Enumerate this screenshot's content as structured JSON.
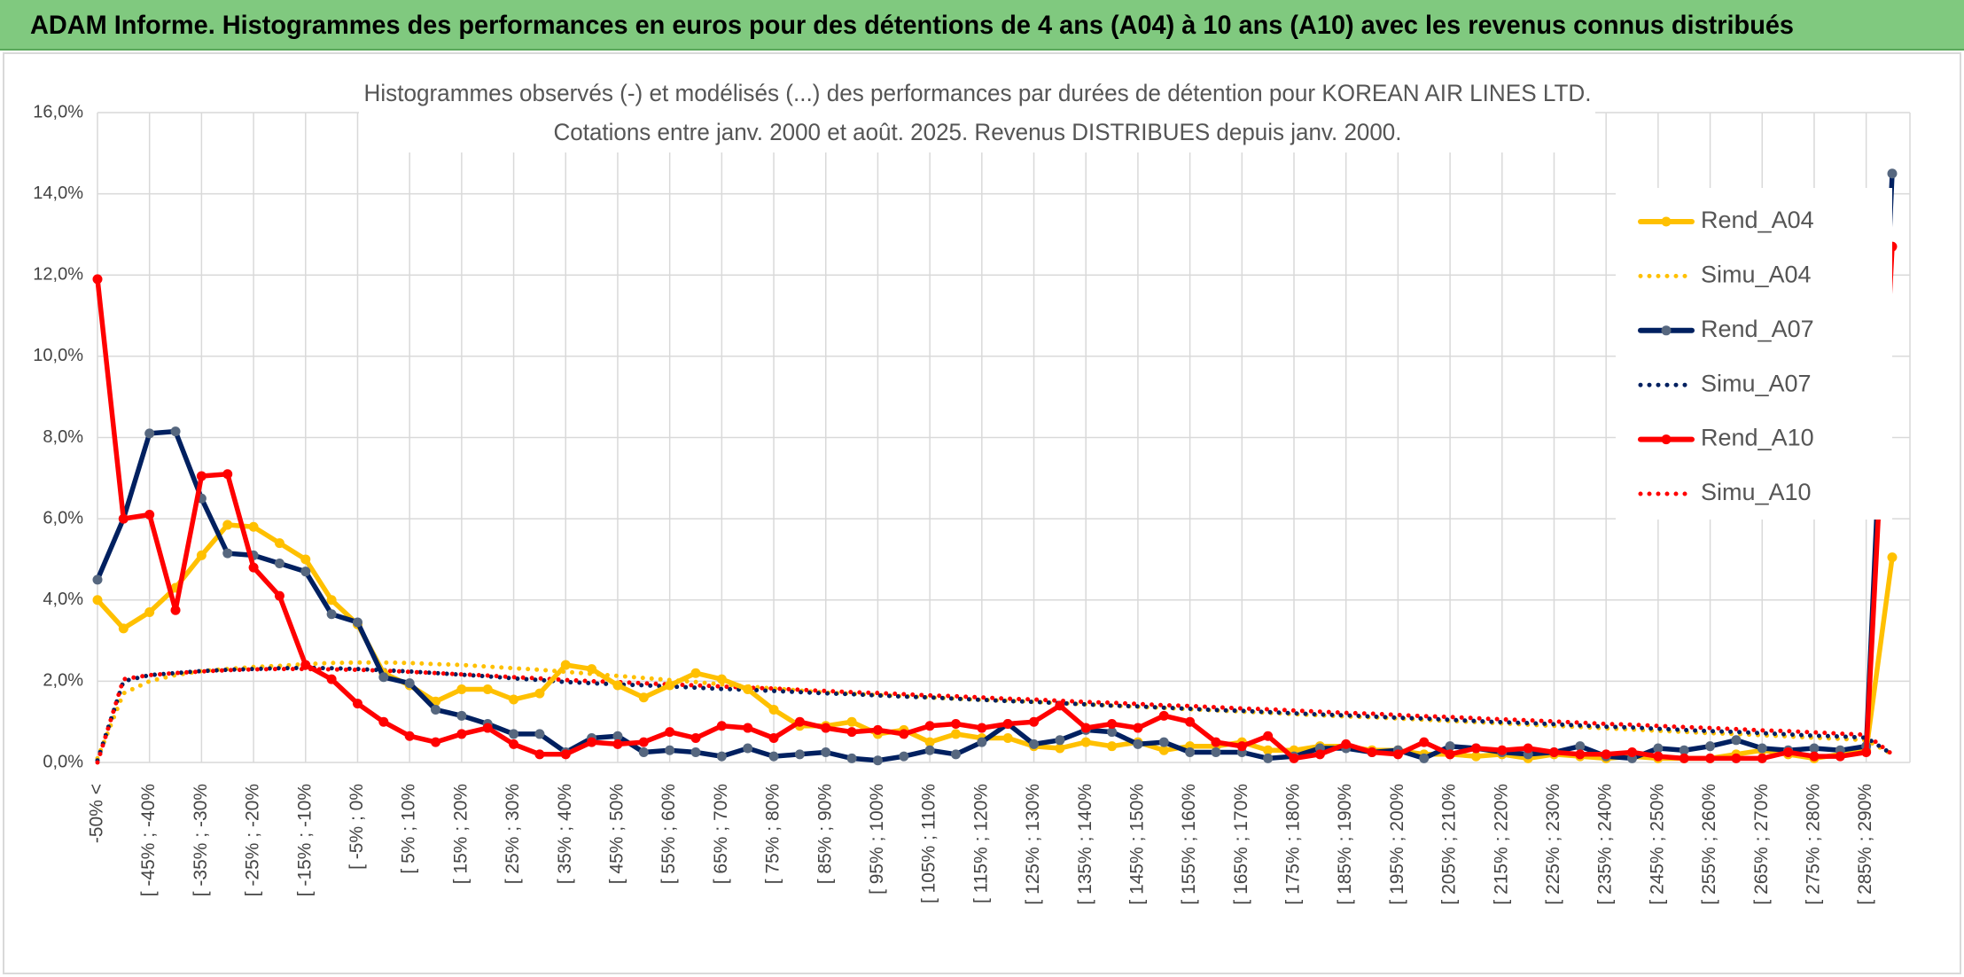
{
  "header": {
    "title": "ADAM Informe. Histogrammes des performances en euros pour des détentions de 4 ans (A04) à 10 ans (A10) avec les revenus connus distribués"
  },
  "chart_data": {
    "type": "line",
    "title": "Histogrammes observés (-) et modélisés (...) des performances par durées de détention pour KOREAN AIR LINES LTD.",
    "subtitle": "Cotations entre janv. 2000 et août. 2025. Revenus DISTRIBUES depuis janv. 2000.",
    "categories": [
      "-50% <",
      null,
      "[ -45% ; -40%",
      null,
      "[ -35% ; -30%",
      null,
      "[ -25% ; -20%",
      null,
      "[ -15% ; -10%",
      null,
      "[ -5% ; 0%",
      null,
      "[ 5% ; 10%",
      null,
      "[ 15% ; 20%",
      null,
      "[ 25% ; 30%",
      null,
      "[ 35% ; 40%",
      null,
      "[ 45% ; 50%",
      null,
      "[ 55% ; 60%",
      null,
      "[ 65% ; 70%",
      null,
      "[ 75% ; 80%",
      null,
      "[ 85% ; 90%",
      null,
      "[ 95% ; 100%",
      null,
      "[ 105% ; 110%",
      null,
      "[ 115% ; 120%",
      null,
      "[ 125% ; 130%",
      null,
      "[ 135% ; 140%",
      null,
      "[ 145% ; 150%",
      null,
      "[ 155% ; 160%",
      null,
      "[ 165% ; 170%",
      null,
      "[ 175% ; 180%",
      null,
      "[ 185% ; 190%",
      null,
      "[ 195% ; 200%",
      null,
      "[ 205% ; 210%",
      null,
      "[ 215% ; 220%",
      null,
      "[ 225% ; 230%",
      null,
      "[ 235% ; 240%",
      null,
      "[ 245% ; 250%",
      null,
      "[ 255% ; 260%",
      null,
      "[ 265% ; 270%",
      null,
      "[ 275% ; 280%",
      null,
      "[ 285% ; 290%",
      null
    ],
    "series": [
      {
        "name": "Rend_A04",
        "color": "#ffc000",
        "line_style": "solid",
        "marker_color": "#ffc000",
        "values": [
          4.0,
          3.3,
          3.7,
          4.3,
          5.1,
          5.85,
          5.8,
          5.4,
          5.0,
          4.0,
          3.4,
          2.2,
          1.9,
          1.5,
          1.8,
          1.8,
          1.55,
          1.7,
          2.4,
          2.3,
          1.9,
          1.6,
          1.9,
          2.2,
          2.05,
          1.8,
          1.3,
          0.9,
          0.9,
          1.0,
          0.7,
          0.8,
          0.5,
          0.7,
          0.6,
          0.6,
          0.4,
          0.35,
          0.5,
          0.4,
          0.5,
          0.3,
          0.4,
          0.4,
          0.5,
          0.3,
          0.3,
          0.4,
          0.4,
          0.3,
          0.3,
          0.2,
          0.2,
          0.15,
          0.2,
          0.1,
          0.2,
          0.15,
          0.1,
          0.15,
          0.1,
          0.1,
          0.1,
          0.2,
          0.3,
          0.2,
          0.1,
          0.2,
          0.3,
          5.05
        ]
      },
      {
        "name": "Simu_A04",
        "color": "#ffc000",
        "line_style": "dotted",
        "values": [
          0.1,
          1.7,
          2.0,
          2.15,
          2.25,
          2.3,
          2.35,
          2.38,
          2.42,
          2.45,
          2.46,
          2.46,
          2.45,
          2.42,
          2.4,
          2.36,
          2.32,
          2.28,
          2.23,
          2.18,
          2.13,
          2.08,
          2.03,
          1.98,
          1.92,
          1.87,
          1.82,
          1.77,
          1.72,
          1.69,
          1.66,
          1.63,
          1.6,
          1.57,
          1.54,
          1.52,
          1.49,
          1.46,
          1.43,
          1.4,
          1.37,
          1.34,
          1.31,
          1.28,
          1.25,
          1.22,
          1.19,
          1.16,
          1.13,
          1.11,
          1.08,
          1.05,
          1.02,
          0.99,
          0.96,
          0.93,
          0.9,
          0.87,
          0.84,
          0.81,
          0.78,
          0.75,
          0.72,
          0.7,
          0.67,
          0.64,
          0.61,
          0.58,
          0.55,
          0.2
        ]
      },
      {
        "name": "Rend_A07",
        "color": "#002060",
        "line_style": "solid",
        "marker_color": "#56677f",
        "values": [
          4.5,
          6.0,
          8.1,
          8.15,
          6.5,
          5.15,
          5.1,
          4.9,
          4.7,
          3.65,
          3.45,
          2.1,
          1.95,
          1.3,
          1.15,
          0.95,
          0.7,
          0.7,
          0.25,
          0.6,
          0.65,
          0.25,
          0.3,
          0.25,
          0.15,
          0.35,
          0.15,
          0.2,
          0.25,
          0.1,
          0.05,
          0.15,
          0.3,
          0.2,
          0.5,
          0.95,
          0.45,
          0.55,
          0.8,
          0.75,
          0.45,
          0.5,
          0.25,
          0.25,
          0.25,
          0.1,
          0.15,
          0.35,
          0.35,
          0.25,
          0.3,
          0.1,
          0.4,
          0.35,
          0.25,
          0.2,
          0.25,
          0.4,
          0.15,
          0.1,
          0.35,
          0.3,
          0.4,
          0.55,
          0.35,
          0.3,
          0.35,
          0.3,
          0.4,
          14.5
        ]
      },
      {
        "name": "Simu_A07",
        "color": "#002060",
        "line_style": "dotted",
        "values": [
          0.05,
          2.0,
          2.15,
          2.2,
          2.25,
          2.28,
          2.3,
          2.32,
          2.33,
          2.32,
          2.3,
          2.27,
          2.24,
          2.2,
          2.16,
          2.12,
          2.07,
          2.03,
          1.98,
          1.95,
          1.92,
          1.9,
          1.87,
          1.84,
          1.81,
          1.79,
          1.76,
          1.73,
          1.7,
          1.68,
          1.65,
          1.62,
          1.6,
          1.57,
          1.54,
          1.51,
          1.49,
          1.46,
          1.43,
          1.4,
          1.38,
          1.35,
          1.32,
          1.29,
          1.27,
          1.24,
          1.21,
          1.18,
          1.16,
          1.13,
          1.1,
          1.08,
          1.05,
          1.02,
          0.99,
          0.97,
          0.94,
          0.91,
          0.88,
          0.86,
          0.83,
          0.8,
          0.77,
          0.75,
          0.72,
          0.69,
          0.66,
          0.64,
          0.61,
          0.2
        ]
      },
      {
        "name": "Rend_A10",
        "color": "#ff0000",
        "line_style": "solid",
        "marker_color": "#ff0000",
        "values": [
          11.9,
          6.0,
          6.1,
          3.75,
          7.05,
          7.1,
          4.8,
          4.1,
          2.4,
          2.05,
          1.45,
          1.0,
          0.65,
          0.5,
          0.7,
          0.85,
          0.45,
          0.2,
          0.2,
          0.5,
          0.45,
          0.5,
          0.75,
          0.6,
          0.9,
          0.85,
          0.6,
          1.0,
          0.85,
          0.75,
          0.8,
          0.7,
          0.9,
          0.95,
          0.85,
          0.95,
          1.0,
          1.4,
          0.85,
          0.95,
          0.85,
          1.15,
          1.0,
          0.5,
          0.4,
          0.65,
          0.1,
          0.2,
          0.45,
          0.25,
          0.2,
          0.5,
          0.2,
          0.35,
          0.3,
          0.35,
          0.25,
          0.2,
          0.2,
          0.25,
          0.15,
          0.1,
          0.1,
          0.1,
          0.1,
          0.25,
          0.15,
          0.15,
          0.25,
          12.7
        ]
      },
      {
        "name": "Simu_A10",
        "color": "#ff0000",
        "line_style": "dotted",
        "values": [
          0.0,
          2.05,
          2.15,
          2.2,
          2.24,
          2.27,
          2.29,
          2.3,
          2.3,
          2.29,
          2.28,
          2.26,
          2.23,
          2.2,
          2.17,
          2.14,
          2.1,
          2.07,
          2.03,
          2.0,
          1.98,
          1.95,
          1.92,
          1.9,
          1.87,
          1.84,
          1.82,
          1.79,
          1.76,
          1.73,
          1.71,
          1.68,
          1.65,
          1.63,
          1.6,
          1.57,
          1.55,
          1.52,
          1.49,
          1.47,
          1.44,
          1.41,
          1.39,
          1.36,
          1.33,
          1.31,
          1.28,
          1.25,
          1.22,
          1.2,
          1.17,
          1.14,
          1.12,
          1.09,
          1.06,
          1.04,
          1.01,
          0.98,
          0.95,
          0.93,
          0.9,
          0.87,
          0.85,
          0.82,
          0.79,
          0.77,
          0.74,
          0.71,
          0.68,
          0.2
        ]
      }
    ],
    "ylim": [
      0,
      16
    ],
    "yticks": [
      {
        "value": 0,
        "label": "0,0%"
      },
      {
        "value": 2,
        "label": "2,0%"
      },
      {
        "value": 4,
        "label": "4,0%"
      },
      {
        "value": 6,
        "label": "6,0%"
      },
      {
        "value": 8,
        "label": "8,0%"
      },
      {
        "value": 10,
        "label": "10,0%"
      },
      {
        "value": 12,
        "label": "12,0%"
      },
      {
        "value": 14,
        "label": "14,0%"
      },
      {
        "value": 16,
        "label": "16,0%"
      }
    ],
    "grid": true,
    "legend": "upper right"
  }
}
